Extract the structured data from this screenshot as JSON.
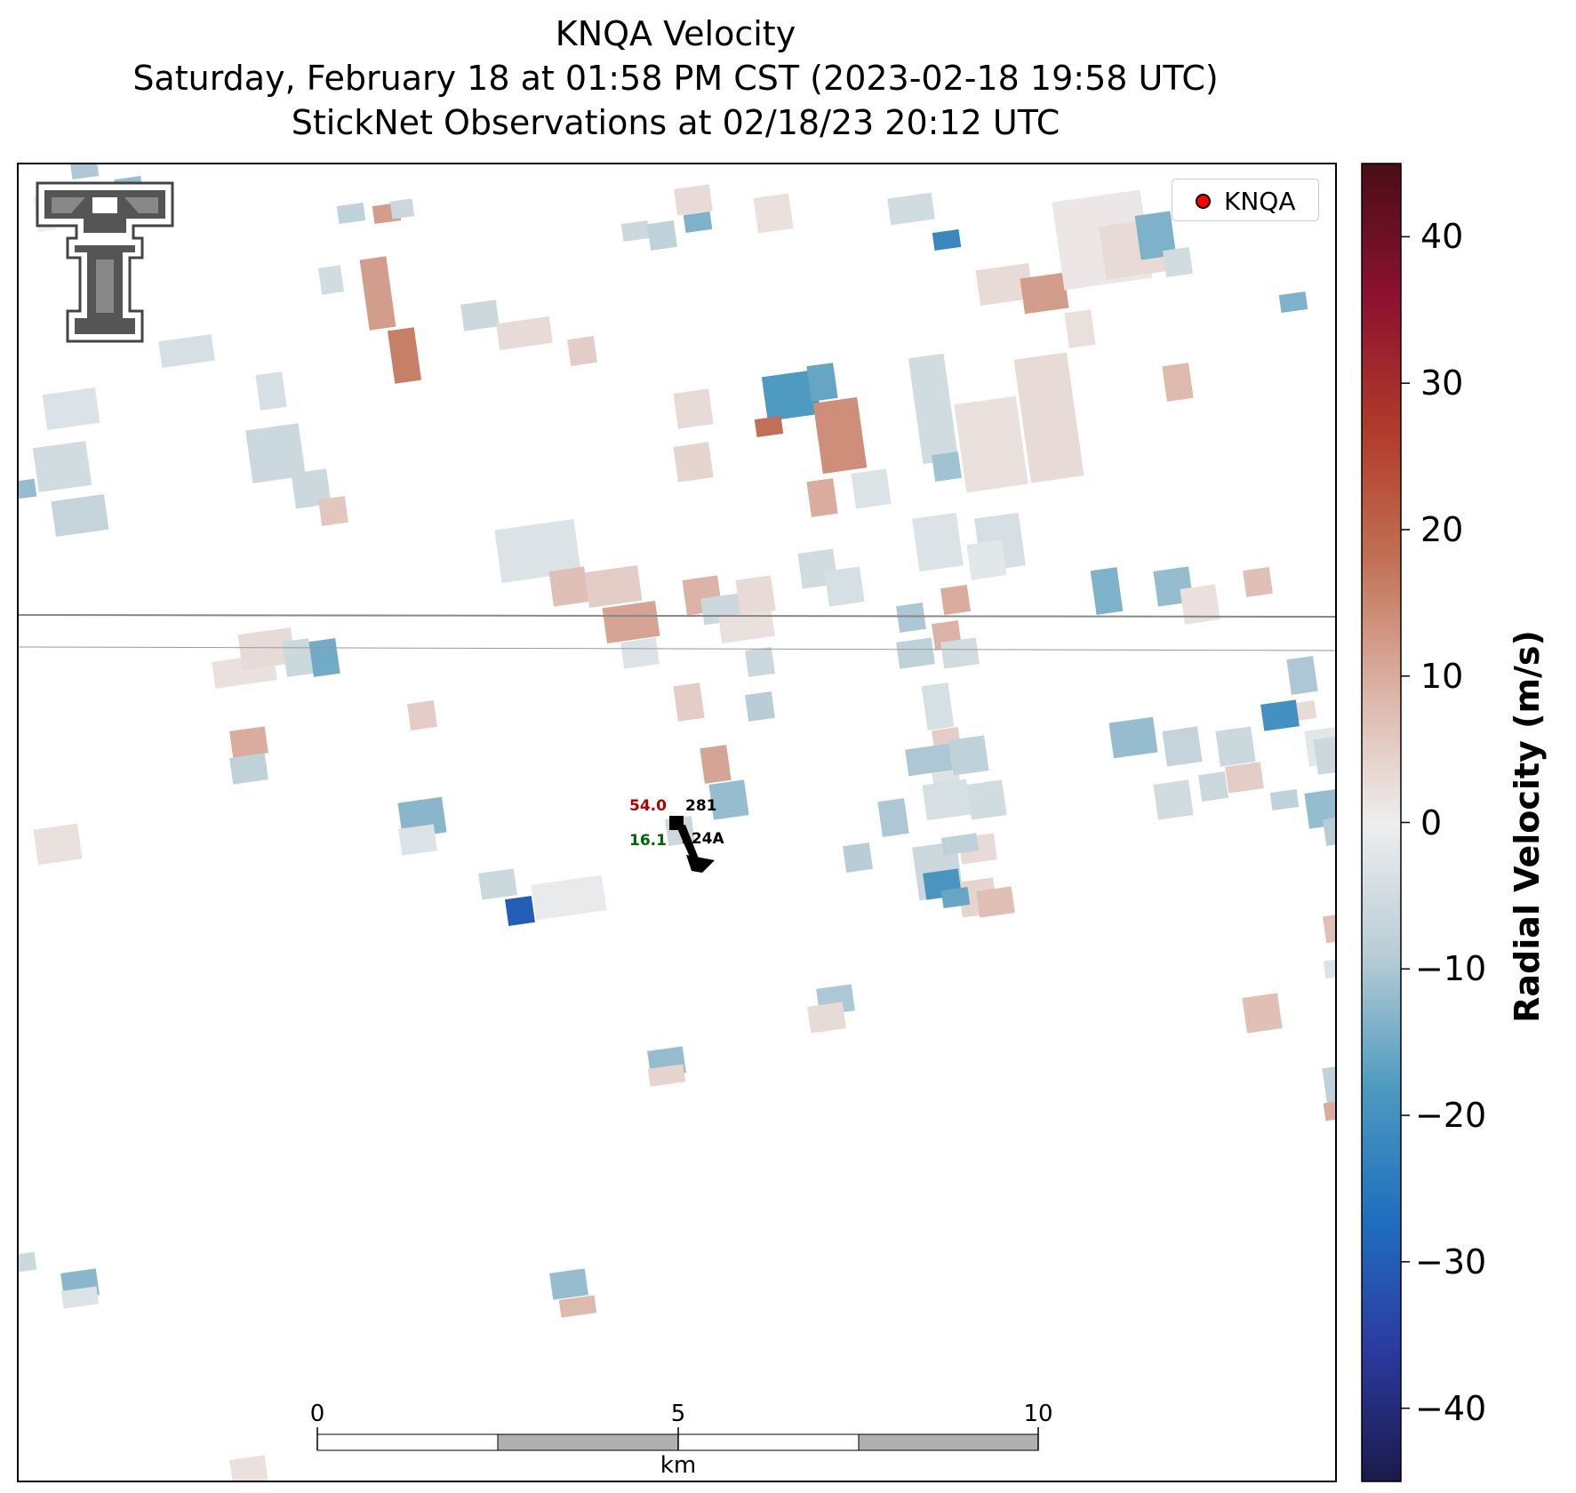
{
  "title": {
    "line1": "KNQA Velocity",
    "line2": "Saturday, February 18 at 01:58 PM CST (2023-02-18 19:58 UTC)",
    "line3": "StickNet Observations at 02/18/23 20:12 UTC"
  },
  "legend": {
    "label": "KNQA",
    "marker_color": "#ff0000"
  },
  "colorbar": {
    "label": "Radial Velocity (m/s)",
    "range": [
      -45,
      45
    ],
    "ticks": [
      "40",
      "30",
      "20",
      "10",
      "0",
      "−10",
      "−20",
      "−30",
      "−40"
    ],
    "colormap": [
      "#1a1a4a",
      "#2b3aa0",
      "#1f6fbf",
      "#4f9ac0",
      "#b9cdd6",
      "#eeeeee",
      "#dcb3a6",
      "#c27055",
      "#b03a2a",
      "#8c1030",
      "#4a0e17"
    ]
  },
  "scale_bar": {
    "ticks": [
      "0",
      "5",
      "10"
    ],
    "unit": "km"
  },
  "station": {
    "temperature": "54.0",
    "dewpoint": "16.1",
    "pressure": "281",
    "id": "124A",
    "temperature_color": "#b00000",
    "dewpoint_color": "#006400"
  },
  "logo": {
    "name": "texas-tech-double-t-logo",
    "color": "#555555"
  },
  "radar_cells": [
    [
      40,
      220,
      20,
      40,
      0
    ],
    [
      80,
      180,
      30,
      20,
      -10
    ],
    [
      130,
      200,
      30,
      25,
      -12
    ],
    [
      380,
      230,
      30,
      20,
      -8
    ],
    [
      420,
      230,
      30,
      20,
      12
    ],
    [
      440,
      225,
      25,
      20,
      -6
    ],
    [
      410,
      290,
      30,
      80,
      12
    ],
    [
      440,
      370,
      30,
      60,
      16
    ],
    [
      360,
      300,
      25,
      30,
      -5
    ],
    [
      180,
      380,
      60,
      30,
      -4
    ],
    [
      50,
      440,
      60,
      40,
      -3
    ],
    [
      40,
      500,
      60,
      50,
      -5
    ],
    [
      60,
      560,
      60,
      40,
      -7
    ],
    [
      20,
      540,
      20,
      20,
      -12
    ],
    [
      280,
      480,
      60,
      60,
      -6
    ],
    [
      330,
      530,
      40,
      40,
      -6
    ],
    [
      360,
      560,
      30,
      30,
      6
    ],
    [
      290,
      420,
      30,
      40,
      -4
    ],
    [
      520,
      340,
      40,
      30,
      -6
    ],
    [
      560,
      360,
      60,
      30,
      3
    ],
    [
      640,
      380,
      30,
      30,
      5
    ],
    [
      700,
      250,
      30,
      20,
      -6
    ],
    [
      730,
      250,
      30,
      30,
      -8
    ],
    [
      770,
      240,
      30,
      20,
      -14
    ],
    [
      760,
      210,
      40,
      30,
      3
    ],
    [
      850,
      220,
      40,
      40,
      2
    ],
    [
      1000,
      220,
      50,
      30,
      -5
    ],
    [
      1050,
      260,
      30,
      20,
      -22
    ],
    [
      860,
      420,
      60,
      50,
      -18
    ],
    [
      910,
      410,
      30,
      40,
      -16
    ],
    [
      920,
      450,
      50,
      80,
      14
    ],
    [
      850,
      470,
      30,
      20,
      18
    ],
    [
      760,
      440,
      40,
      40,
      3
    ],
    [
      760,
      500,
      40,
      40,
      4
    ],
    [
      910,
      540,
      30,
      40,
      10
    ],
    [
      960,
      530,
      40,
      40,
      -3
    ],
    [
      1030,
      400,
      40,
      120,
      -5
    ],
    [
      1080,
      450,
      70,
      100,
      2
    ],
    [
      1100,
      580,
      50,
      60,
      -4
    ],
    [
      1100,
      300,
      60,
      40,
      3
    ],
    [
      1150,
      310,
      50,
      40,
      12
    ],
    [
      1200,
      350,
      30,
      40,
      2
    ],
    [
      1150,
      400,
      60,
      140,
      3
    ],
    [
      1190,
      220,
      100,
      100,
      1
    ],
    [
      1240,
      250,
      70,
      60,
      3
    ],
    [
      1280,
      240,
      40,
      50,
      -14
    ],
    [
      1310,
      280,
      30,
      30,
      -5
    ],
    [
      1310,
      410,
      30,
      40,
      8
    ],
    [
      1440,
      330,
      30,
      20,
      -14
    ],
    [
      560,
      590,
      90,
      60,
      -3
    ],
    [
      620,
      640,
      40,
      40,
      7
    ],
    [
      660,
      640,
      60,
      40,
      5
    ],
    [
      680,
      680,
      60,
      40,
      11
    ],
    [
      700,
      720,
      40,
      30,
      -3
    ],
    [
      770,
      650,
      40,
      40,
      9
    ],
    [
      790,
      670,
      50,
      30,
      -6
    ],
    [
      830,
      650,
      40,
      40,
      3
    ],
    [
      810,
      690,
      60,
      30,
      2
    ],
    [
      900,
      620,
      40,
      40,
      -5
    ],
    [
      930,
      640,
      40,
      40,
      -4
    ],
    [
      1010,
      680,
      30,
      30,
      -10
    ],
    [
      1050,
      700,
      30,
      30,
      9
    ],
    [
      1060,
      720,
      40,
      30,
      -5
    ],
    [
      1090,
      610,
      40,
      40,
      -2
    ],
    [
      1030,
      580,
      50,
      60,
      -3
    ],
    [
      840,
      730,
      30,
      30,
      -6
    ],
    [
      840,
      780,
      30,
      30,
      -9
    ],
    [
      760,
      770,
      30,
      40,
      5
    ],
    [
      790,
      840,
      30,
      40,
      11
    ],
    [
      800,
      880,
      40,
      40,
      -12
    ],
    [
      750,
      920,
      30,
      30,
      -6
    ],
    [
      1060,
      660,
      30,
      30,
      10
    ],
    [
      1010,
      720,
      40,
      30,
      -8
    ],
    [
      1230,
      640,
      30,
      50,
      -14
    ],
    [
      1300,
      640,
      40,
      40,
      -12
    ],
    [
      1330,
      660,
      40,
      40,
      2
    ],
    [
      1400,
      640,
      30,
      30,
      7
    ],
    [
      1450,
      740,
      30,
      40,
      -10
    ],
    [
      1450,
      790,
      30,
      20,
      3
    ],
    [
      1470,
      890,
      40,
      40,
      -12
    ],
    [
      1490,
      920,
      30,
      30,
      -9
    ],
    [
      1470,
      820,
      40,
      40,
      -2
    ],
    [
      1370,
      820,
      40,
      40,
      -6
    ],
    [
      1310,
      820,
      40,
      40,
      -7
    ],
    [
      1250,
      810,
      50,
      40,
      -12
    ],
    [
      1300,
      880,
      40,
      40,
      -5
    ],
    [
      1350,
      870,
      30,
      30,
      -6
    ],
    [
      1430,
      890,
      30,
      20,
      -8
    ],
    [
      1050,
      820,
      30,
      30,
      5
    ],
    [
      1050,
      860,
      30,
      40,
      -3
    ],
    [
      1070,
      830,
      40,
      40,
      -8
    ],
    [
      1090,
      880,
      40,
      40,
      -5
    ],
    [
      1080,
      940,
      40,
      30,
      3
    ],
    [
      1030,
      950,
      50,
      60,
      -6
    ],
    [
      1080,
      990,
      40,
      40,
      4
    ],
    [
      950,
      950,
      30,
      30,
      -9
    ],
    [
      1100,
      1000,
      40,
      30,
      7
    ],
    [
      990,
      900,
      30,
      40,
      -10
    ],
    [
      1040,
      770,
      30,
      50,
      -4
    ],
    [
      1380,
      860,
      40,
      30,
      5
    ],
    [
      240,
      740,
      70,
      30,
      2
    ],
    [
      270,
      710,
      60,
      40,
      3
    ],
    [
      320,
      720,
      30,
      40,
      -6
    ],
    [
      350,
      720,
      30,
      40,
      -15
    ],
    [
      260,
      820,
      40,
      30,
      10
    ],
    [
      260,
      850,
      40,
      30,
      -8
    ],
    [
      40,
      930,
      50,
      40,
      2
    ],
    [
      450,
      900,
      50,
      40,
      -13
    ],
    [
      450,
      930,
      40,
      30,
      -3
    ],
    [
      460,
      790,
      30,
      30,
      5
    ],
    [
      570,
      1010,
      30,
      30,
      -30
    ],
    [
      600,
      990,
      80,
      40,
      -1
    ],
    [
      540,
      980,
      40,
      30,
      -6
    ],
    [
      1020,
      840,
      50,
      30,
      -10
    ],
    [
      1040,
      880,
      50,
      40,
      -4
    ],
    [
      1060,
      940,
      40,
      20,
      -8
    ],
    [
      1040,
      980,
      40,
      30,
      -19
    ],
    [
      1420,
      790,
      40,
      30,
      -20
    ],
    [
      1480,
      830,
      30,
      40,
      -6
    ],
    [
      1060,
      1000,
      30,
      20,
      -16
    ],
    [
      920,
      1110,
      40,
      30,
      -10
    ],
    [
      910,
      1130,
      40,
      30,
      3
    ],
    [
      730,
      1180,
      40,
      30,
      -12
    ],
    [
      730,
      1200,
      40,
      20,
      4
    ],
    [
      1400,
      1120,
      40,
      40,
      7
    ],
    [
      1490,
      1200,
      30,
      40,
      -8
    ],
    [
      1490,
      1240,
      20,
      20,
      10
    ],
    [
      70,
      1430,
      40,
      30,
      -13
    ],
    [
      70,
      1450,
      40,
      20,
      -3
    ],
    [
      620,
      1430,
      40,
      30,
      -12
    ],
    [
      630,
      1460,
      40,
      20,
      8
    ],
    [
      260,
      1640,
      40,
      30,
      2
    ],
    [
      20,
      1410,
      20,
      20,
      -6
    ],
    [
      1490,
      1030,
      20,
      30,
      7
    ],
    [
      1490,
      1080,
      20,
      20,
      -3
    ],
    [
      1050,
      510,
      30,
      30,
      -11
    ]
  ]
}
